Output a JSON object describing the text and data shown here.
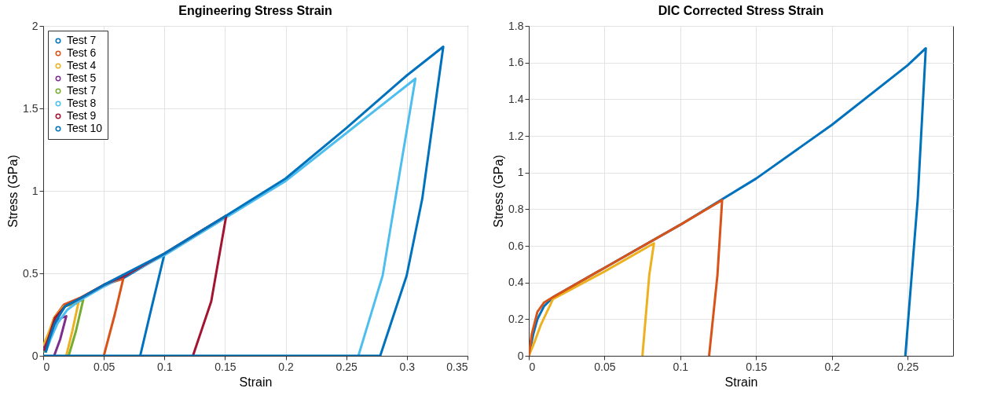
{
  "chart_data": [
    {
      "type": "line",
      "title": "Engineering Stress Strain",
      "xlabel": "Strain",
      "ylabel": "Stress (GPa)",
      "xlim": [
        0,
        0.35
      ],
      "ylim": [
        0,
        2
      ],
      "xticks": [
        0,
        0.05,
        0.1,
        0.15,
        0.2,
        0.25,
        0.3,
        0.35
      ],
      "yticks": [
        0,
        0.5,
        1,
        1.5,
        2
      ],
      "grid": true,
      "legend": "top left",
      "series": [
        {
          "name": "Test 7",
          "color": "#0072bd",
          "x": [
            0.001,
            0.005,
            0.0097,
            0.018,
            0.031,
            0.05,
            0.066,
            0.1,
            0.089,
            0.08
          ],
          "values": [
            0.02,
            0.1,
            0.22,
            0.3,
            0.35,
            0.43,
            0.47,
            0.617,
            0.28,
            0
          ]
        },
        {
          "name": "Test 6",
          "color": "#d95319",
          "x": [
            0.001,
            0.004,
            0.009,
            0.017,
            0.03,
            0.05,
            0.066,
            0.059,
            0.05
          ],
          "values": [
            0.04,
            0.12,
            0.23,
            0.31,
            0.35,
            0.43,
            0.467,
            0.25,
            0
          ]
        },
        {
          "name": "Test 4",
          "color": "#edb120",
          "x": [
            0,
            0.004,
            0.009,
            0.017,
            0.029,
            0.024,
            0.019
          ],
          "values": [
            0.06,
            0.13,
            0.23,
            0.3,
            0.32,
            0.15,
            0
          ]
        },
        {
          "name": "Test 5",
          "color": "#7e2f8e",
          "x": [
            0,
            0.004,
            0.009,
            0.015,
            0.019,
            0.014,
            0.009
          ],
          "values": [
            0.03,
            0.1,
            0.19,
            0.23,
            0.24,
            0.1,
            0
          ]
        },
        {
          "name": "Test 7",
          "color": "#77ac30",
          "x": [
            0.001,
            0.005,
            0.0097,
            0.018,
            0.033,
            0.027,
            0.021
          ],
          "values": [
            0.02,
            0.12,
            0.22,
            0.3,
            0.34,
            0.15,
            0
          ]
        },
        {
          "name": "Test 8",
          "color": "#4dbeee",
          "x": [
            0.002,
            0.006,
            0.012,
            0.02,
            0.031,
            0.05,
            0.1,
            0.151,
            0.2,
            0.25,
            0.307,
            0.294,
            0.28,
            0.26
          ],
          "values": [
            0.02,
            0.1,
            0.2,
            0.28,
            0.34,
            0.42,
            0.61,
            0.84,
            1.06,
            1.35,
            1.68,
            1.107,
            0.486,
            0
          ]
        },
        {
          "name": "Test 9",
          "color": "#a2142f",
          "x": [
            0.001,
            0.005,
            0.0097,
            0.018,
            0.031,
            0.05,
            0.066,
            0.1,
            0.151,
            0.1386,
            0.1235
          ],
          "values": [
            0.03,
            0.12,
            0.23,
            0.3,
            0.35,
            0.43,
            0.48,
            0.62,
            0.85,
            0.33,
            0
          ]
        },
        {
          "name": "Test 10",
          "color": "#0072bd",
          "x": [
            0,
            0.278,
            0.2998,
            0.3127,
            0.33,
            0.3,
            0.25,
            0.2,
            0.151,
            0.1,
            0.05,
            0.031,
            0.018,
            0.0097,
            0.005,
            0.002
          ],
          "values": [
            0,
            0,
            0.486,
            0.953,
            1.874,
            1.7,
            1.38,
            1.075,
            0.85,
            0.62,
            0.43,
            0.35,
            0.3,
            0.2,
            0.1,
            0.02
          ]
        }
      ]
    },
    {
      "type": "line",
      "title": "DIC Corrected Stress Strain",
      "xlabel": "Strain",
      "ylabel": "Stress (GPa)",
      "xlim": [
        0,
        0.28
      ],
      "ylim": [
        0,
        1.8
      ],
      "xticks": [
        0,
        0.05,
        0.1,
        0.15,
        0.2,
        0.25
      ],
      "yticks": [
        0,
        0.2,
        0.4,
        0.6,
        0.8,
        1,
        1.2,
        1.4,
        1.6,
        1.8
      ],
      "grid": true,
      "series": [
        {
          "color": "#0072bd",
          "x": [
            0,
            0.003,
            0.0057,
            0.01,
            0.016,
            0.05,
            0.1,
            0.15,
            0.2,
            0.25,
            0.262,
            0.2567,
            0.2485
          ],
          "values": [
            0,
            0.12,
            0.2,
            0.27,
            0.32,
            0.48,
            0.715,
            0.967,
            1.26,
            1.585,
            1.678,
            0.858,
            0
          ]
        },
        {
          "color": "#edb120",
          "x": [
            0,
            0.004,
            0.008,
            0.016,
            0.05,
            0.0826,
            0.0795,
            0.075
          ],
          "values": [
            0,
            0.08,
            0.17,
            0.31,
            0.46,
            0.614,
            0.44,
            0
          ]
        },
        {
          "color": "#d95319",
          "x": [
            0,
            0.002,
            0.0057,
            0.01,
            0.016,
            0.05,
            0.1,
            0.1276,
            0.1245,
            0.119
          ],
          "values": [
            0,
            0.12,
            0.24,
            0.29,
            0.32,
            0.48,
            0.715,
            0.85,
            0.44,
            0
          ]
        }
      ]
    }
  ]
}
